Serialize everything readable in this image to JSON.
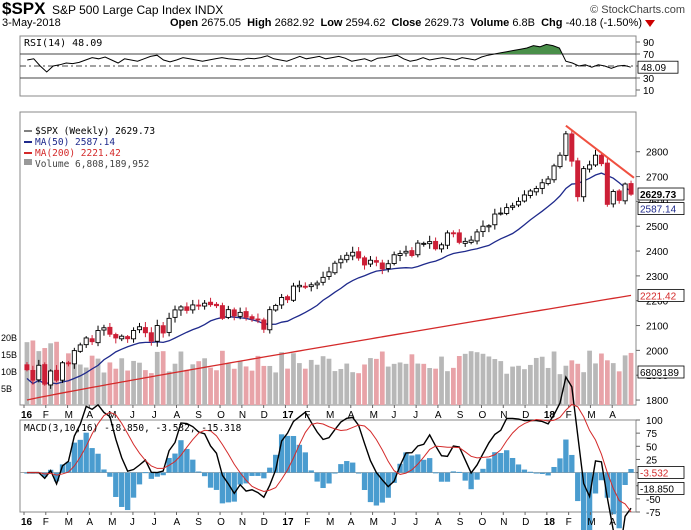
{
  "header": {
    "symbol": "$SPX",
    "name": "S&P 500 Large Cap Index",
    "exchange": "INDX",
    "date": "3-May-2018",
    "open_label": "Open",
    "open": "2675.05",
    "high_label": "High",
    "high": "2682.92",
    "low_label": "Low",
    "low": "2594.62",
    "close_label": "Close",
    "close": "2629.73",
    "volume_label": "Volume",
    "volume": "6.8B",
    "chg_label": "Chg",
    "chg": "-40.18 (-1.50%)",
    "brand": "© StockCharts.com"
  },
  "colors": {
    "up": "#000000",
    "down": "#cc1f36",
    "ma50": "#1f2a8c",
    "ma200": "#d42a2a",
    "trend": "#f05040",
    "rsi_fill": "#4a8f4a",
    "vol_up": "#b8b8b8",
    "vol_down": "#e8a3a8",
    "hist": "#4a9ccf"
  },
  "chart_data": [
    {
      "type": "line",
      "panel": "RSI",
      "legend": "RSI(14) 48.09",
      "ylim": [
        0,
        100
      ],
      "levels": [
        70,
        50,
        30
      ],
      "y_ticks": [
        "90",
        "70",
        "50",
        "30",
        "10"
      ],
      "last_value_label": "48.09",
      "values": [
        60,
        62,
        50,
        40,
        50,
        52,
        55,
        54,
        56,
        60,
        64,
        62,
        65,
        60,
        55,
        62,
        60,
        58,
        62,
        66,
        68,
        60,
        57,
        60,
        64,
        62,
        60,
        58,
        60,
        62,
        64,
        62,
        61,
        60,
        63,
        62,
        64,
        67,
        62,
        60,
        58,
        62,
        66,
        62,
        64,
        66,
        62,
        64,
        66,
        63,
        58,
        60,
        62,
        58,
        63,
        64,
        66,
        68,
        62,
        58,
        60,
        64,
        60,
        62,
        64,
        62,
        60,
        64,
        62,
        60,
        65,
        68,
        70,
        72,
        74,
        76,
        78,
        80,
        84,
        82,
        86,
        84,
        80,
        58,
        55,
        50,
        52,
        48,
        52,
        50,
        46,
        50,
        51,
        48
      ]
    },
    {
      "type": "candlestick",
      "panel": "price",
      "legend": [
        "$SPX (Weekly) 2629.73",
        "MA(50) 2587.14",
        "MA(200) 2221.42",
        "Volume 6,808,189,952"
      ],
      "ylim": [
        1780,
        2960
      ],
      "y_ticks": [
        "2800",
        "2700",
        "2600",
        "2500",
        "2400",
        "2300",
        "2200",
        "2100",
        "2000",
        "1900",
        "1800"
      ],
      "x_ticks": [
        "16",
        "F",
        "M",
        "A",
        "M",
        "J",
        "J",
        "A",
        "S",
        "O",
        "N",
        "D",
        "17",
        "F",
        "M",
        "A",
        "M",
        "J",
        "J",
        "A",
        "S",
        "O",
        "N",
        "D",
        "18",
        "F",
        "M",
        "A"
      ],
      "price_labels": {
        "close": "2629.73",
        "ma50": "2587.14",
        "ma200": "2221.42",
        "volume": "6808189"
      },
      "close": [
        1922,
        1880,
        1940,
        1864,
        1917,
        1880,
        1950,
        1948,
        1999,
        2022,
        2050,
        2035,
        2080,
        2091,
        2065,
        2050,
        2057,
        2047,
        2080,
        2095,
        2071,
        2037,
        2100,
        2070,
        2129,
        2163,
        2175,
        2161,
        2183,
        2182,
        2190,
        2184,
        2180,
        2129,
        2164,
        2139,
        2153,
        2133,
        2127,
        2126,
        2085,
        2164,
        2181,
        2213,
        2204,
        2259,
        2262,
        2258,
        2264,
        2271,
        2294,
        2316,
        2351,
        2367,
        2383,
        2395,
        2372,
        2344,
        2363,
        2355,
        2328,
        2349,
        2385,
        2390,
        2399,
        2382,
        2432,
        2431,
        2438,
        2409,
        2425,
        2473,
        2472,
        2435,
        2439,
        2444,
        2477,
        2500,
        2502,
        2549,
        2553,
        2575,
        2582,
        2600,
        2626,
        2642,
        2652,
        2675,
        2690,
        2743,
        2786,
        2872,
        2762,
        2619,
        2732,
        2747,
        2786,
        2752,
        2588,
        2640,
        2604,
        2670,
        2629
      ]
    },
    {
      "type": "bar",
      "panel": "volume",
      "y_ticks": [
        "20B",
        "15B",
        "10B",
        "5B"
      ],
      "ylim": [
        0,
        22
      ]
    },
    {
      "type": "line",
      "panel": "MACD",
      "legend": "MACD(3,10,16) -18.850, -3.532, -15.318",
      "ylim": [
        -75,
        100
      ],
      "y_ticks": [
        "100",
        "75",
        "50",
        "25",
        "0",
        "-25",
        "-50",
        "-75"
      ],
      "last_value_labels": [
        "-3.532",
        "-18.850"
      ],
      "x_ticks": [
        "16",
        "F",
        "M",
        "A",
        "M",
        "J",
        "J",
        "A",
        "S",
        "O",
        "N",
        "D",
        "17",
        "F",
        "M",
        "A",
        "M",
        "J",
        "J",
        "A",
        "S",
        "O",
        "N",
        "D",
        "18",
        "F",
        "M",
        "A"
      ]
    }
  ]
}
